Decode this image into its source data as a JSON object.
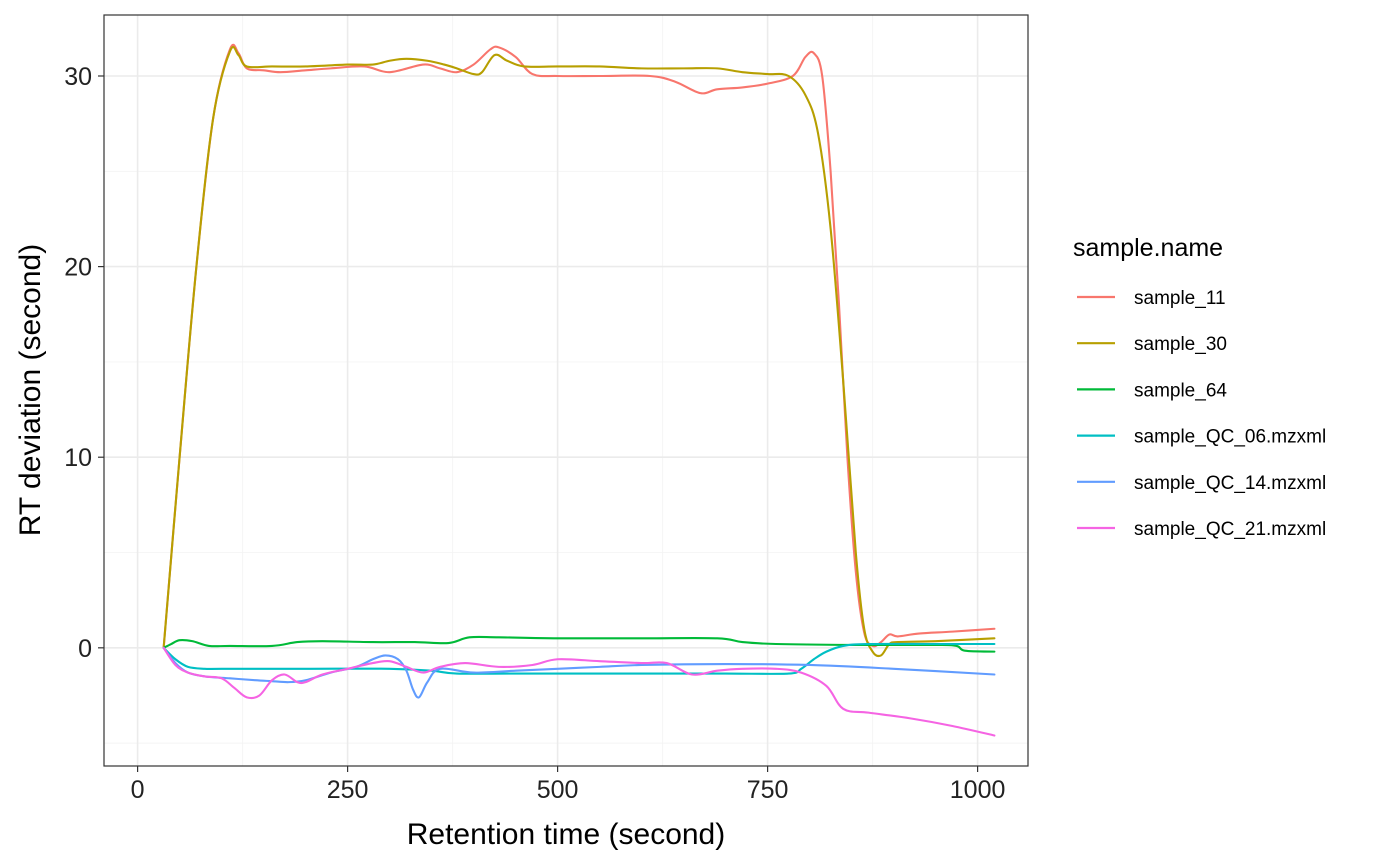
{
  "chart_data": {
    "type": "line",
    "title": "",
    "xlabel": "Retention time (second)",
    "ylabel": "RT deviation (second)",
    "xlim": [
      -40,
      1060
    ],
    "ylim": [
      -6.2,
      33.2
    ],
    "x_ticks": [
      0,
      250,
      500,
      750,
      1000
    ],
    "x_tick_labels": [
      "0",
      "250",
      "500",
      "750",
      "1000"
    ],
    "y_ticks": [
      0,
      10,
      20,
      30
    ],
    "y_tick_labels": [
      "0",
      "10",
      "20",
      "30"
    ],
    "grid": true,
    "legend": {
      "title": "sample.name",
      "position": "right"
    },
    "series": [
      {
        "name": "sample_11",
        "color": "#F8766D",
        "points": [
          [
            31,
            0
          ],
          [
            50,
            10
          ],
          [
            70,
            20
          ],
          [
            90,
            27.8
          ],
          [
            110,
            31.4
          ],
          [
            120,
            31.2
          ],
          [
            130,
            30.4
          ],
          [
            150,
            30.3
          ],
          [
            170,
            30.2
          ],
          [
            200,
            30.3
          ],
          [
            230,
            30.4
          ],
          [
            270,
            30.5
          ],
          [
            300,
            30.2
          ],
          [
            340,
            30.6
          ],
          [
            360,
            30.4
          ],
          [
            380,
            30.2
          ],
          [
            400,
            30.6
          ],
          [
            420,
            31.4
          ],
          [
            430,
            31.5
          ],
          [
            450,
            31
          ],
          [
            470,
            30.1
          ],
          [
            500,
            30
          ],
          [
            550,
            30
          ],
          [
            610,
            30
          ],
          [
            640,
            29.7
          ],
          [
            670,
            29.1
          ],
          [
            690,
            29.3
          ],
          [
            720,
            29.4
          ],
          [
            750,
            29.6
          ],
          [
            780,
            30
          ],
          [
            795,
            31
          ],
          [
            805,
            31.2
          ],
          [
            815,
            30
          ],
          [
            825,
            25
          ],
          [
            835,
            18
          ],
          [
            845,
            10
          ],
          [
            855,
            4
          ],
          [
            865,
            0.8
          ],
          [
            875,
            0.1
          ],
          [
            885,
            0.3
          ],
          [
            895,
            0.7
          ],
          [
            905,
            0.6
          ],
          [
            930,
            0.75
          ],
          [
            970,
            0.85
          ],
          [
            1020,
            1
          ]
        ]
      },
      {
        "name": "sample_30",
        "color": "#B79F00",
        "points": [
          [
            31,
            0
          ],
          [
            50,
            10
          ],
          [
            70,
            20
          ],
          [
            90,
            27.8
          ],
          [
            110,
            31.3
          ],
          [
            120,
            31.1
          ],
          [
            130,
            30.5
          ],
          [
            160,
            30.5
          ],
          [
            200,
            30.5
          ],
          [
            250,
            30.6
          ],
          [
            280,
            30.6
          ],
          [
            300,
            30.8
          ],
          [
            320,
            30.9
          ],
          [
            345,
            30.8
          ],
          [
            365,
            30.6
          ],
          [
            380,
            30.4
          ],
          [
            400,
            30.1
          ],
          [
            410,
            30.2
          ],
          [
            425,
            31.1
          ],
          [
            440,
            30.8
          ],
          [
            460,
            30.5
          ],
          [
            500,
            30.5
          ],
          [
            550,
            30.5
          ],
          [
            600,
            30.4
          ],
          [
            650,
            30.4
          ],
          [
            690,
            30.4
          ],
          [
            720,
            30.2
          ],
          [
            750,
            30.1
          ],
          [
            775,
            30
          ],
          [
            795,
            29
          ],
          [
            810,
            27
          ],
          [
            825,
            22
          ],
          [
            840,
            14
          ],
          [
            855,
            5
          ],
          [
            865,
            1
          ],
          [
            875,
            -0.2
          ],
          [
            885,
            -0.4
          ],
          [
            895,
            0.2
          ],
          [
            905,
            0.3
          ],
          [
            950,
            0.35
          ],
          [
            1020,
            0.5
          ]
        ]
      },
      {
        "name": "sample_64",
        "color": "#00BA38",
        "points": [
          [
            31,
            0
          ],
          [
            40,
            0.2
          ],
          [
            50,
            0.4
          ],
          [
            65,
            0.35
          ],
          [
            85,
            0.1
          ],
          [
            110,
            0.1
          ],
          [
            160,
            0.1
          ],
          [
            190,
            0.3
          ],
          [
            220,
            0.35
          ],
          [
            280,
            0.3
          ],
          [
            330,
            0.3
          ],
          [
            370,
            0.25
          ],
          [
            395,
            0.55
          ],
          [
            430,
            0.55
          ],
          [
            500,
            0.5
          ],
          [
            600,
            0.5
          ],
          [
            690,
            0.5
          ],
          [
            720,
            0.3
          ],
          [
            760,
            0.2
          ],
          [
            850,
            0.15
          ],
          [
            950,
            0.15
          ],
          [
            975,
            0.1
          ],
          [
            985,
            -0.15
          ],
          [
            1020,
            -0.2
          ]
        ]
      },
      {
        "name": "sample_QC_06.mzxml",
        "color": "#00BFC4",
        "points": [
          [
            31,
            0
          ],
          [
            45,
            -0.6
          ],
          [
            60,
            -1
          ],
          [
            80,
            -1.1
          ],
          [
            100,
            -1.1
          ],
          [
            200,
            -1.1
          ],
          [
            300,
            -1.1
          ],
          [
            350,
            -1.2
          ],
          [
            380,
            -1.35
          ],
          [
            450,
            -1.35
          ],
          [
            600,
            -1.35
          ],
          [
            700,
            -1.35
          ],
          [
            775,
            -1.35
          ],
          [
            790,
            -1.1
          ],
          [
            805,
            -0.6
          ],
          [
            820,
            -0.2
          ],
          [
            840,
            0.1
          ],
          [
            870,
            0.2
          ],
          [
            950,
            0.2
          ],
          [
            1020,
            0.2
          ]
        ]
      },
      {
        "name": "sample_QC_14.mzxml",
        "color": "#619CFF",
        "points": [
          [
            31,
            0
          ],
          [
            45,
            -0.8
          ],
          [
            60,
            -1.3
          ],
          [
            80,
            -1.5
          ],
          [
            110,
            -1.6
          ],
          [
            140,
            -1.7
          ],
          [
            160,
            -1.75
          ],
          [
            180,
            -1.8
          ],
          [
            200,
            -1.7
          ],
          [
            230,
            -1.3
          ],
          [
            260,
            -1
          ],
          [
            280,
            -0.6
          ],
          [
            295,
            -0.4
          ],
          [
            310,
            -0.6
          ],
          [
            320,
            -1.2
          ],
          [
            328,
            -2.2
          ],
          [
            335,
            -2.6
          ],
          [
            345,
            -1.8
          ],
          [
            360,
            -1.1
          ],
          [
            400,
            -1.3
          ],
          [
            450,
            -1.2
          ],
          [
            500,
            -1.1
          ],
          [
            550,
            -1
          ],
          [
            600,
            -0.9
          ],
          [
            700,
            -0.85
          ],
          [
            800,
            -0.9
          ],
          [
            900,
            -1.1
          ],
          [
            1020,
            -1.4
          ]
        ]
      },
      {
        "name": "sample_QC_21.mzxml",
        "color": "#F564E3",
        "points": [
          [
            31,
            0
          ],
          [
            45,
            -0.9
          ],
          [
            60,
            -1.3
          ],
          [
            80,
            -1.5
          ],
          [
            100,
            -1.6
          ],
          [
            115,
            -2.1
          ],
          [
            130,
            -2.6
          ],
          [
            145,
            -2.5
          ],
          [
            160,
            -1.7
          ],
          [
            175,
            -1.4
          ],
          [
            190,
            -1.8
          ],
          [
            200,
            -1.8
          ],
          [
            220,
            -1.4
          ],
          [
            250,
            -1.1
          ],
          [
            280,
            -0.8
          ],
          [
            300,
            -0.7
          ],
          [
            320,
            -1
          ],
          [
            340,
            -1.3
          ],
          [
            360,
            -1
          ],
          [
            390,
            -0.8
          ],
          [
            430,
            -1
          ],
          [
            470,
            -0.9
          ],
          [
            500,
            -0.6
          ],
          [
            550,
            -0.7
          ],
          [
            600,
            -0.8
          ],
          [
            630,
            -0.8
          ],
          [
            660,
            -1.4
          ],
          [
            690,
            -1.2
          ],
          [
            720,
            -1.1
          ],
          [
            760,
            -1.1
          ],
          [
            790,
            -1.3
          ],
          [
            820,
            -2
          ],
          [
            840,
            -3.2
          ],
          [
            870,
            -3.4
          ],
          [
            920,
            -3.7
          ],
          [
            970,
            -4.1
          ],
          [
            1020,
            -4.6
          ]
        ]
      }
    ]
  }
}
